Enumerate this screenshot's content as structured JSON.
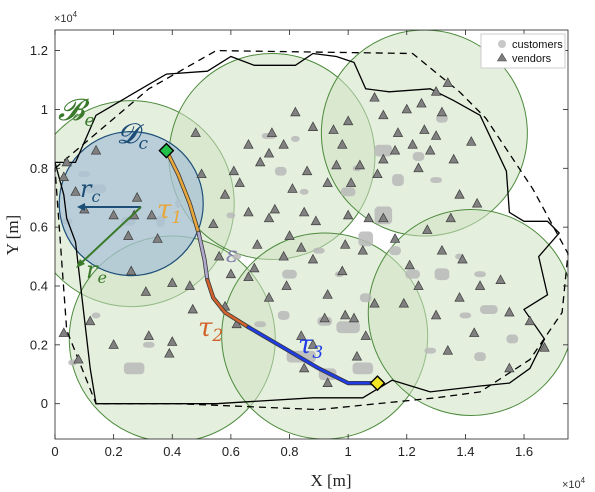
{
  "chart_data": {
    "type": "scatter",
    "xlabel": "X [m]",
    "ylabel": "Y [m]",
    "x_exponent": "×10^4",
    "y_exponent": "×10^4",
    "xlim": [
      0,
      1.75
    ],
    "ylim": [
      -0.12,
      1.27
    ],
    "xticks": [
      "0",
      "0.2",
      "0.4",
      "0.6",
      "0.8",
      "1",
      "1.2",
      "1.4",
      "1.6"
    ],
    "yticks": [
      "0",
      "0.2",
      "0.4",
      "0.6",
      "0.8",
      "1",
      "1.2"
    ],
    "legend": {
      "position": "top-right",
      "entries": [
        {
          "label": "customers",
          "marker": "circle",
          "color": "#c8c8c8"
        },
        {
          "label": "vendors",
          "marker": "triangle",
          "color": "#808080"
        }
      ]
    },
    "regions": [
      {
        "cx": 0.26,
        "cy": 0.68,
        "r": 0.44,
        "color": "#cfe1c2"
      },
      {
        "cx": 0.4,
        "cy": 0.22,
        "r": 0.44,
        "color": "#cfe1c2"
      },
      {
        "cx": 0.74,
        "cy": 0.84,
        "r": 0.44,
        "color": "#cfe1c2"
      },
      {
        "cx": 1.26,
        "cy": 0.92,
        "r": 0.44,
        "color": "#cfe1c2"
      },
      {
        "cx": 0.92,
        "cy": 0.23,
        "r": 0.44,
        "color": "#cfe1c2"
      },
      {
        "cx": 1.42,
        "cy": 0.31,
        "r": 0.44,
        "color": "#cfe1c2"
      }
    ],
    "customer_disc": {
      "cx": 0.26,
      "cy": 0.68,
      "r": 0.33,
      "color": "#a9c3d6"
    },
    "boundary_solid": [
      [
        0.0,
        0.82
      ],
      [
        0.07,
        0.82
      ],
      [
        0.14,
        0.98
      ],
      [
        0.38,
        1.12
      ],
      [
        0.52,
        1.13
      ],
      [
        0.6,
        1.18
      ],
      [
        0.68,
        1.15
      ],
      [
        0.82,
        1.15
      ],
      [
        0.88,
        1.19
      ],
      [
        0.96,
        1.18
      ],
      [
        1.02,
        1.16
      ],
      [
        1.06,
        1.07
      ],
      [
        1.14,
        1.06
      ],
      [
        1.28,
        1.07
      ],
      [
        1.36,
        1.03
      ],
      [
        1.45,
        0.98
      ],
      [
        1.54,
        0.79
      ],
      [
        1.55,
        0.65
      ],
      [
        1.6,
        0.62
      ],
      [
        1.68,
        0.62
      ],
      [
        1.72,
        0.58
      ],
      [
        1.65,
        0.5
      ],
      [
        1.68,
        0.37
      ],
      [
        1.6,
        0.32
      ],
      [
        1.67,
        0.22
      ],
      [
        1.62,
        0.12
      ],
      [
        1.55,
        0.07
      ],
      [
        1.45,
        0.06
      ],
      [
        1.28,
        0.04
      ],
      [
        1.15,
        0.08
      ],
      [
        1.05,
        0.02
      ],
      [
        0.88,
        0.02
      ],
      [
        0.55,
        0.0
      ],
      [
        0.14,
        0.0
      ],
      [
        0.12,
        0.12
      ],
      [
        0.07,
        0.55
      ],
      [
        0.04,
        0.63
      ],
      [
        0.03,
        0.71
      ],
      [
        0.0,
        0.82
      ]
    ],
    "boundary_dashed": [
      [
        0.0,
        0.8
      ],
      [
        0.32,
        1.07
      ],
      [
        0.55,
        1.2
      ],
      [
        1.22,
        1.19
      ],
      [
        1.38,
        1.06
      ],
      [
        1.47,
        0.97
      ],
      [
        1.63,
        0.73
      ],
      [
        1.75,
        0.51
      ],
      [
        1.73,
        0.31
      ],
      [
        1.62,
        0.15
      ],
      [
        1.45,
        0.04
      ],
      [
        1.3,
        0.02
      ],
      [
        0.9,
        -0.02
      ],
      [
        0.42,
        0.0
      ],
      [
        0.14,
        0.0
      ],
      [
        0.04,
        0.25
      ],
      [
        0.0,
        0.8
      ]
    ],
    "path_segments": [
      {
        "name": "τ1",
        "color": "#e8a63a",
        "points": [
          [
            0.38,
            0.86
          ],
          [
            0.42,
            0.78
          ],
          [
            0.46,
            0.68
          ],
          [
            0.49,
            0.58
          ]
        ]
      },
      {
        "name": "ε",
        "color": "#b0a8cf",
        "points": [
          [
            0.49,
            0.58
          ],
          [
            0.51,
            0.49
          ],
          [
            0.52,
            0.42
          ]
        ]
      },
      {
        "name": "τ2",
        "color": "#d2622c",
        "points": [
          [
            0.52,
            0.42
          ],
          [
            0.54,
            0.36
          ],
          [
            0.58,
            0.31
          ],
          [
            0.66,
            0.26
          ]
        ]
      },
      {
        "name": "τ3",
        "color": "#1f3ce6",
        "points": [
          [
            0.66,
            0.26
          ],
          [
            0.78,
            0.19
          ],
          [
            0.9,
            0.12
          ],
          [
            1.0,
            0.07
          ],
          [
            1.1,
            0.07
          ]
        ]
      }
    ],
    "start_point": {
      "x": 0.38,
      "y": 0.86,
      "marker": "diamond",
      "color": "#22c24a"
    },
    "end_point": {
      "x": 1.1,
      "y": 0.07,
      "marker": "diamond",
      "color": "#f2e521"
    },
    "vendors": [
      [
        0.04,
        0.82
      ],
      [
        0.03,
        0.77
      ],
      [
        0.07,
        0.72
      ],
      [
        0.1,
        0.66
      ],
      [
        0.14,
        0.86
      ],
      [
        0.2,
        0.64
      ],
      [
        0.27,
        0.64
      ],
      [
        0.33,
        0.64
      ],
      [
        0.28,
        0.7
      ],
      [
        0.35,
        0.56
      ],
      [
        0.25,
        0.57
      ],
      [
        0.26,
        0.45
      ],
      [
        0.31,
        0.38
      ],
      [
        0.4,
        0.41
      ],
      [
        0.46,
        0.4
      ],
      [
        0.03,
        0.24
      ],
      [
        0.08,
        0.15
      ],
      [
        0.12,
        0.28
      ],
      [
        0.2,
        0.2
      ],
      [
        0.32,
        0.23
      ],
      [
        0.39,
        0.17
      ],
      [
        0.4,
        0.21
      ],
      [
        0.47,
        0.32
      ],
      [
        0.54,
        0.61
      ],
      [
        0.58,
        0.71
      ],
      [
        0.63,
        0.75
      ],
      [
        0.66,
        0.65
      ],
      [
        0.69,
        0.54
      ],
      [
        0.7,
        0.82
      ],
      [
        0.73,
        0.85
      ],
      [
        0.66,
        0.88
      ],
      [
        0.74,
        0.92
      ],
      [
        0.75,
        0.66
      ],
      [
        0.81,
        0.73
      ],
      [
        0.86,
        0.79
      ],
      [
        0.89,
        0.62
      ],
      [
        0.93,
        0.75
      ],
      [
        0.98,
        0.88
      ],
      [
        1.01,
        0.75
      ],
      [
        1.04,
        0.81
      ],
      [
        0.95,
        0.93
      ],
      [
        0.88,
        0.94
      ],
      [
        0.78,
        0.88
      ],
      [
        0.82,
        0.99
      ],
      [
        1.1,
        0.78
      ],
      [
        1.12,
        0.83
      ],
      [
        1.17,
        0.92
      ],
      [
        1.16,
        0.86
      ],
      [
        1.2,
        1.0
      ],
      [
        1.22,
        0.88
      ],
      [
        1.24,
        0.8
      ],
      [
        1.26,
        0.93
      ],
      [
        1.28,
        0.86
      ],
      [
        1.3,
        0.91
      ],
      [
        1.32,
        0.99
      ],
      [
        1.36,
        0.83
      ],
      [
        1.38,
        0.71
      ],
      [
        1.42,
        0.89
      ],
      [
        1.44,
        0.68
      ],
      [
        1.25,
        1.02
      ],
      [
        1.3,
        1.06
      ],
      [
        1.34,
        1.09
      ],
      [
        1.12,
        0.98
      ],
      [
        1.09,
        1.04
      ],
      [
        0.78,
        0.5
      ],
      [
        0.84,
        0.53
      ],
      [
        0.88,
        0.49
      ],
      [
        0.98,
        0.45
      ],
      [
        0.99,
        0.54
      ],
      [
        1.05,
        0.52
      ],
      [
        0.93,
        0.37
      ],
      [
        0.73,
        0.36
      ],
      [
        0.66,
        0.43
      ],
      [
        0.79,
        0.4
      ],
      [
        0.84,
        0.23
      ],
      [
        0.88,
        0.2
      ],
      [
        0.93,
        0.07
      ],
      [
        1.03,
        0.16
      ],
      [
        1.06,
        0.23
      ],
      [
        1.09,
        0.34
      ],
      [
        1.19,
        0.34
      ],
      [
        1.24,
        0.4
      ],
      [
        1.3,
        0.3
      ],
      [
        1.34,
        0.18
      ],
      [
        1.39,
        0.49
      ],
      [
        1.45,
        0.4
      ],
      [
        1.52,
        0.42
      ],
      [
        1.55,
        0.31
      ],
      [
        1.62,
        0.28
      ],
      [
        1.67,
        0.19
      ],
      [
        1.55,
        0.12
      ],
      [
        1.43,
        0.24
      ],
      [
        1.38,
        0.36
      ],
      [
        1.32,
        0.52
      ],
      [
        1.21,
        0.47
      ],
      [
        1.16,
        0.56
      ],
      [
        1.07,
        0.63
      ],
      [
        1.0,
        0.64
      ],
      [
        0.56,
        0.5
      ],
      [
        0.6,
        0.44
      ],
      [
        0.58,
        0.33
      ],
      [
        0.62,
        0.27
      ],
      [
        0.68,
        0.46
      ],
      [
        0.73,
        0.63
      ],
      [
        0.61,
        0.79
      ],
      [
        0.48,
        0.92
      ],
      [
        0.5,
        0.78
      ],
      [
        0.96,
        0.81
      ],
      [
        1.0,
        0.96
      ],
      [
        0.85,
        0.65
      ],
      [
        0.92,
        0.29
      ],
      [
        0.99,
        0.3
      ],
      [
        1.12,
        0.63
      ],
      [
        0.8,
        0.57
      ],
      [
        0.85,
        0.12
      ],
      [
        1.02,
        0.29
      ],
      [
        1.27,
        0.59
      ],
      [
        1.35,
        0.63
      ]
    ],
    "customer_blobs": [
      [
        0.04,
        0.62,
        0.04,
        0.02
      ],
      [
        0.14,
        0.73,
        0.07,
        0.03
      ],
      [
        0.25,
        0.62,
        0.05,
        0.03
      ],
      [
        0.1,
        0.78,
        0.04,
        0.02
      ],
      [
        0.36,
        0.62,
        0.03,
        0.04
      ],
      [
        0.27,
        0.12,
        0.07,
        0.04
      ],
      [
        0.06,
        0.14,
        0.03,
        0.02
      ],
      [
        0.14,
        0.3,
        0.03,
        0.02
      ],
      [
        0.32,
        0.2,
        0.04,
        0.02
      ],
      [
        0.42,
        0.68,
        0.02,
        0.03
      ],
      [
        0.6,
        0.64,
        0.03,
        0.02
      ],
      [
        0.73,
        0.91,
        0.05,
        0.02
      ],
      [
        0.77,
        0.79,
        0.04,
        0.03
      ],
      [
        0.85,
        0.72,
        0.03,
        0.02
      ],
      [
        0.82,
        0.9,
        0.03,
        0.02
      ],
      [
        1.0,
        0.72,
        0.05,
        0.03
      ],
      [
        1.03,
        0.8,
        0.03,
        0.02
      ],
      [
        1.12,
        0.86,
        0.06,
        0.04
      ],
      [
        1.17,
        0.76,
        0.04,
        0.04
      ],
      [
        1.24,
        0.84,
        0.04,
        0.03
      ],
      [
        1.3,
        0.76,
        0.04,
        0.02
      ],
      [
        1.32,
        0.97,
        0.04,
        0.03
      ],
      [
        1.12,
        0.64,
        0.06,
        0.06
      ],
      [
        1.06,
        0.56,
        0.05,
        0.05
      ],
      [
        1.16,
        0.52,
        0.04,
        0.03
      ],
      [
        1.22,
        0.44,
        0.05,
        0.03
      ],
      [
        1.32,
        0.44,
        0.05,
        0.04
      ],
      [
        1.38,
        0.5,
        0.03,
        0.02
      ],
      [
        1.45,
        0.44,
        0.04,
        0.02
      ],
      [
        1.4,
        0.3,
        0.04,
        0.02
      ],
      [
        1.48,
        0.32,
        0.06,
        0.03
      ],
      [
        1.56,
        0.22,
        0.04,
        0.03
      ],
      [
        1.28,
        0.18,
        0.04,
        0.02
      ],
      [
        1.06,
        0.36,
        0.04,
        0.03
      ],
      [
        1.0,
        0.26,
        0.08,
        0.04
      ],
      [
        0.92,
        0.28,
        0.05,
        0.03
      ],
      [
        0.84,
        0.16,
        0.1,
        0.04
      ],
      [
        0.93,
        0.1,
        0.06,
        0.04
      ],
      [
        1.05,
        0.12,
        0.07,
        0.04
      ],
      [
        0.78,
        0.3,
        0.04,
        0.03
      ],
      [
        0.7,
        0.27,
        0.04,
        0.02
      ],
      [
        0.8,
        0.44,
        0.05,
        0.03
      ],
      [
        0.9,
        0.52,
        0.04,
        0.02
      ],
      [
        0.97,
        0.44,
        0.03,
        0.02
      ],
      [
        0.62,
        0.5,
        0.03,
        0.02
      ],
      [
        1.45,
        0.16,
        0.04,
        0.03
      ]
    ]
  }
}
